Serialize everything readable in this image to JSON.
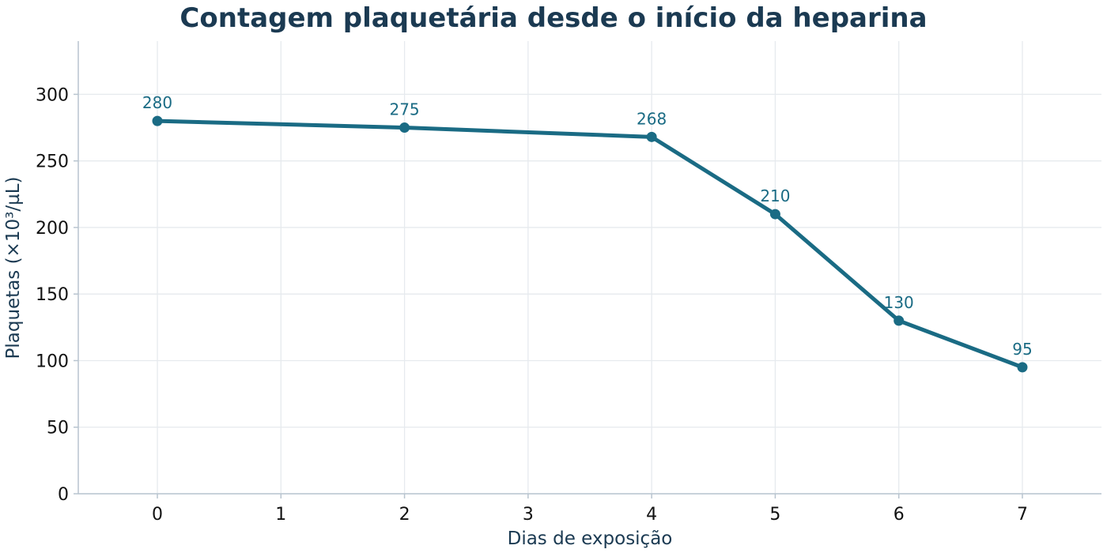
{
  "chart_data": {
    "type": "line",
    "title": "Contagem plaquetária desde o início da heparina",
    "xlabel": "Dias de exposição",
    "ylabel": "Plaquetas (×10³/µL)",
    "x": [
      0,
      2,
      4,
      5,
      6,
      7
    ],
    "series": [
      {
        "values": [
          280,
          275,
          268,
          210,
          130,
          95
        ]
      }
    ],
    "data_labels": [
      "280",
      "275",
      "268",
      "210",
      "130",
      "95"
    ],
    "xlim": [
      -0.64,
      7.64
    ],
    "ylim": [
      0,
      340
    ],
    "xticks": [
      0,
      1,
      2,
      3,
      4,
      5,
      6,
      7
    ],
    "yticks": [
      0,
      50,
      100,
      150,
      200,
      250,
      300
    ],
    "grid": true,
    "line_color": "#1a6b84",
    "title_color": "#1b3a52"
  }
}
